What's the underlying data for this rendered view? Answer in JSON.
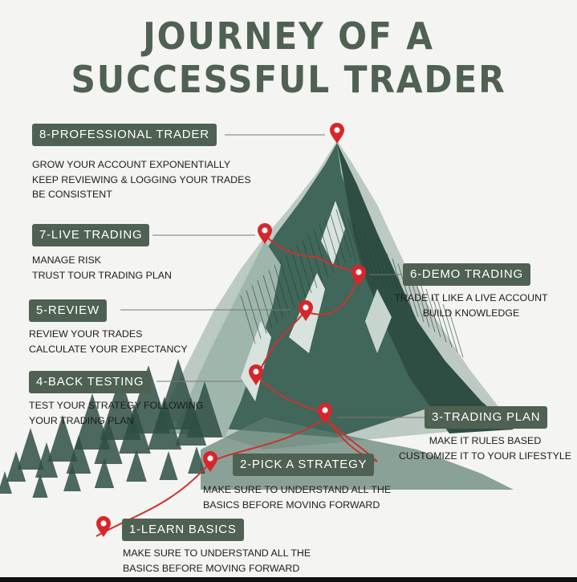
{
  "title": {
    "line1": "JOURNEY OF A",
    "line2": "SUCCESSFUL TRADER"
  },
  "colors": {
    "title": "#4f6152",
    "badge_bg": "#4f6152",
    "badge_text": "#ffffff",
    "path": "#c8342f",
    "pin": "#d7262b",
    "mountain_dark": "#2f4f44",
    "mountain_mid": "#6f8c80",
    "background": "#f4f4f2"
  },
  "steps": [
    {
      "label": "8-PROFESSIONAL TRADER",
      "lines": [
        "GROW YOUR ACCOUNT EXPONENTIALLY",
        "KEEP REVIEWING & LOGGING YOUR TRADES",
        "BE CONSISTENT"
      ]
    },
    {
      "label": "7-LIVE TRADING",
      "lines": [
        "MANAGE RISK",
        "TRUST TOUR TRADING PLAN"
      ]
    },
    {
      "label": "6-DEMO TRADING",
      "lines": [
        "TRADE IT LIKE A LIVE ACCOUNT",
        "BUILD KNOWLEDGE"
      ]
    },
    {
      "label": "5-REVIEW",
      "lines": [
        "REVIEW YOUR TRADES",
        "CALCULATE YOUR EXPECTANCY"
      ]
    },
    {
      "label": "4-BACK TESTING",
      "lines": [
        "TEST YOUR STRATEGY FOLLOWING",
        "YOUR TRADING PLAN"
      ]
    },
    {
      "label": "3-TRADING PLAN",
      "lines": [
        "MAKE IT RULES BASED",
        "CUSTOMIZE IT TO YOUR LIFESTYLE"
      ]
    },
    {
      "label": "2-PICK A STRATEGY",
      "lines": [
        "MAKE SURE TO UNDERSTAND ALL THE",
        "BASICS BEFORE MOVING FORWARD"
      ]
    },
    {
      "label": "1-LEARN BASICS",
      "lines": [
        "MAKE SURE TO UNDERSTAND ALL THE",
        "BASICS BEFORE MOVING FORWARD"
      ]
    }
  ],
  "icons": {
    "pin": "map-pin-icon",
    "tree": "pine-tree-icon"
  }
}
